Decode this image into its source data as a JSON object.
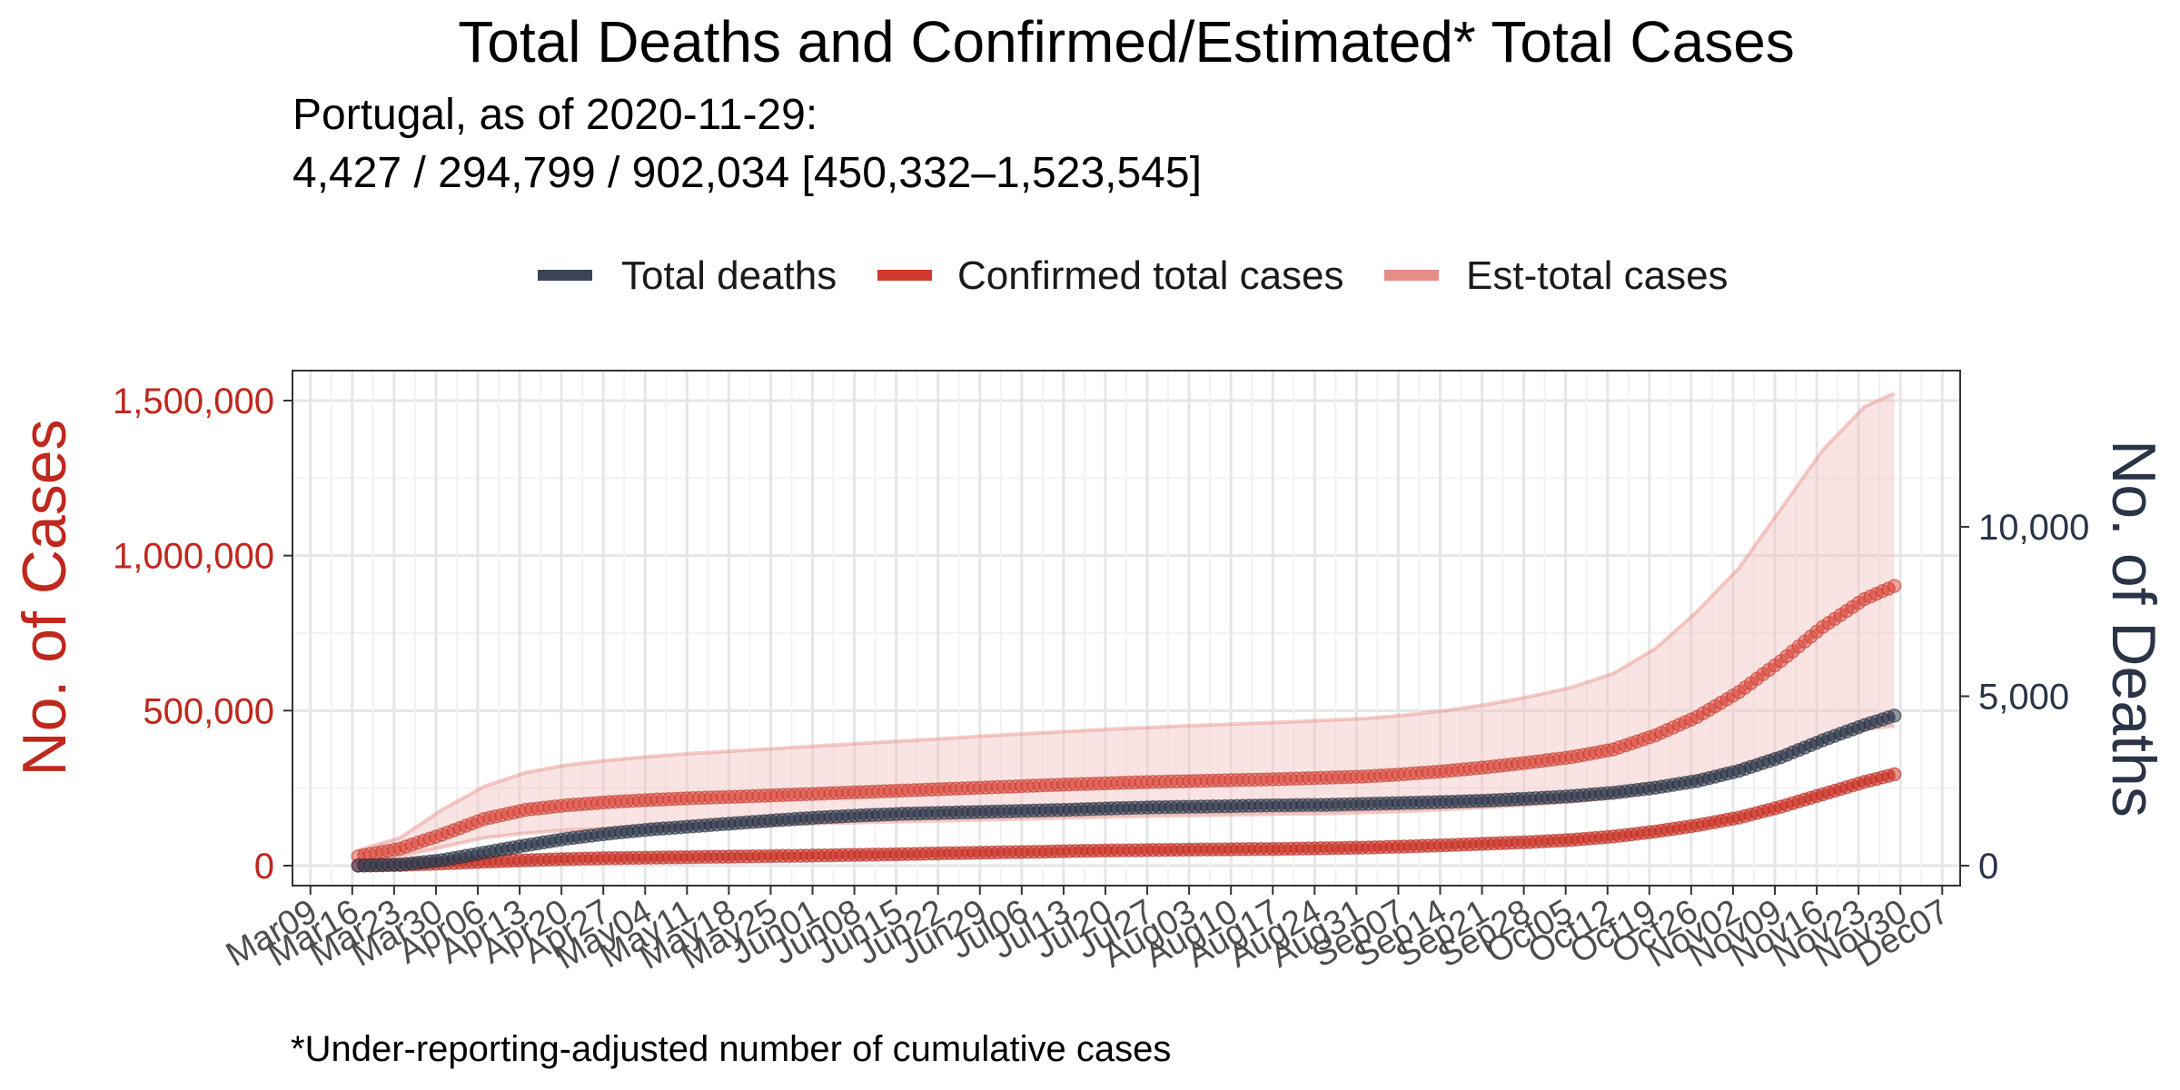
{
  "chart_data": {
    "type": "line",
    "title": "Total Deaths and Confirmed/Estimated* Total Cases",
    "subtitle_line1": "Portugal, as of 2020-11-29:",
    "subtitle_line2": "4,427 / 294,799 / 902,034 [450,332–1,523,545]",
    "caption": "*Under-reporting-adjusted number of cumulative cases",
    "ylabel_left": "No. of Cases",
    "ylabel_right": "No. of Deaths",
    "ylim_left": [
      0,
      1500000
    ],
    "ylim_right": [
      0,
      14000
    ],
    "xlim": [
      "2020-03-06",
      "2020-12-10"
    ],
    "grid": true,
    "legend_position": "top",
    "colors": {
      "deaths": "#3b4457",
      "confirmed": "#d03a2e",
      "estimated": "#e68d86",
      "band": "#f2c4c1",
      "left_axis": "#c0271d",
      "right_axis": "#2b3447"
    },
    "legend": [
      {
        "label": "Total deaths",
        "series": "deaths"
      },
      {
        "label": "Confirmed total cases",
        "series": "confirmed"
      },
      {
        "label": "Est-total cases",
        "series": "estimated"
      }
    ],
    "left_ticks": [
      {
        "value": 0,
        "label": "0"
      },
      {
        "value": 500000,
        "label": "500,000"
      },
      {
        "value": 1000000,
        "label": "1,000,000"
      },
      {
        "value": 1500000,
        "label": "1,500,000"
      }
    ],
    "right_ticks": [
      {
        "value": 0,
        "label": "0"
      },
      {
        "value": 5000,
        "label": "5,000"
      },
      {
        "value": 10000,
        "label": "10,000"
      }
    ],
    "x_ticks": [
      {
        "date": "2020-03-09",
        "label": "Mar09"
      },
      {
        "date": "2020-03-16",
        "label": "Mar16"
      },
      {
        "date": "2020-03-23",
        "label": "Mar23"
      },
      {
        "date": "2020-03-30",
        "label": "Mar30"
      },
      {
        "date": "2020-04-06",
        "label": "Apr06"
      },
      {
        "date": "2020-04-13",
        "label": "Apr13"
      },
      {
        "date": "2020-04-20",
        "label": "Apr20"
      },
      {
        "date": "2020-04-27",
        "label": "Apr27"
      },
      {
        "date": "2020-05-04",
        "label": "May04"
      },
      {
        "date": "2020-05-11",
        "label": "May11"
      },
      {
        "date": "2020-05-18",
        "label": "May18"
      },
      {
        "date": "2020-05-25",
        "label": "May25"
      },
      {
        "date": "2020-06-01",
        "label": "Jun01"
      },
      {
        "date": "2020-06-08",
        "label": "Jun08"
      },
      {
        "date": "2020-06-15",
        "label": "Jun15"
      },
      {
        "date": "2020-06-22",
        "label": "Jun22"
      },
      {
        "date": "2020-06-29",
        "label": "Jun29"
      },
      {
        "date": "2020-07-06",
        "label": "Jul06"
      },
      {
        "date": "2020-07-13",
        "label": "Jul13"
      },
      {
        "date": "2020-07-20",
        "label": "Jul20"
      },
      {
        "date": "2020-07-27",
        "label": "Jul27"
      },
      {
        "date": "2020-08-03",
        "label": "Aug03"
      },
      {
        "date": "2020-08-10",
        "label": "Aug10"
      },
      {
        "date": "2020-08-17",
        "label": "Aug17"
      },
      {
        "date": "2020-08-24",
        "label": "Aug24"
      },
      {
        "date": "2020-08-31",
        "label": "Aug31"
      },
      {
        "date": "2020-09-07",
        "label": "Sep07"
      },
      {
        "date": "2020-09-14",
        "label": "Sep14"
      },
      {
        "date": "2020-09-21",
        "label": "Sep21"
      },
      {
        "date": "2020-09-28",
        "label": "Sep28"
      },
      {
        "date": "2020-10-05",
        "label": "Oct05"
      },
      {
        "date": "2020-10-12",
        "label": "Oct12"
      },
      {
        "date": "2020-10-19",
        "label": "Oct19"
      },
      {
        "date": "2020-10-26",
        "label": "Oct26"
      },
      {
        "date": "2020-11-02",
        "label": "Nov02"
      },
      {
        "date": "2020-11-09",
        "label": "Nov09"
      },
      {
        "date": "2020-11-16",
        "label": "Nov16"
      },
      {
        "date": "2020-11-23",
        "label": "Nov23"
      },
      {
        "date": "2020-11-30",
        "label": "Nov30"
      },
      {
        "date": "2020-12-07",
        "label": "Dec07"
      }
    ],
    "series": [
      {
        "key": "deaths",
        "axis": "right",
        "x": [
          "2020-03-17",
          "2020-03-24",
          "2020-03-31",
          "2020-04-07",
          "2020-04-14",
          "2020-04-21",
          "2020-04-28",
          "2020-05-05",
          "2020-05-12",
          "2020-05-19",
          "2020-05-26",
          "2020-06-02",
          "2020-06-09",
          "2020-06-16",
          "2020-06-23",
          "2020-06-30",
          "2020-07-07",
          "2020-07-14",
          "2020-07-21",
          "2020-07-28",
          "2020-08-04",
          "2020-08-11",
          "2020-08-18",
          "2020-08-25",
          "2020-09-01",
          "2020-09-08",
          "2020-09-15",
          "2020-09-22",
          "2020-09-29",
          "2020-10-06",
          "2020-10-13",
          "2020-10-20",
          "2020-10-27",
          "2020-11-03",
          "2020-11-10",
          "2020-11-17",
          "2020-11-24",
          "2020-11-29"
        ],
        "values": [
          0,
          30,
          160,
          380,
          600,
          800,
          950,
          1070,
          1160,
          1250,
          1340,
          1420,
          1480,
          1530,
          1560,
          1590,
          1620,
          1650,
          1690,
          1720,
          1740,
          1760,
          1780,
          1790,
          1820,
          1850,
          1880,
          1920,
          1980,
          2050,
          2150,
          2300,
          2500,
          2800,
          3200,
          3700,
          4150,
          4427
        ]
      },
      {
        "key": "confirmed",
        "axis": "left",
        "x": [
          "2020-03-17",
          "2020-03-24",
          "2020-03-31",
          "2020-04-07",
          "2020-04-14",
          "2020-04-21",
          "2020-04-28",
          "2020-05-05",
          "2020-05-12",
          "2020-05-19",
          "2020-05-26",
          "2020-06-02",
          "2020-06-09",
          "2020-06-16",
          "2020-06-23",
          "2020-06-30",
          "2020-07-07",
          "2020-07-14",
          "2020-07-21",
          "2020-07-28",
          "2020-08-04",
          "2020-08-11",
          "2020-08-18",
          "2020-08-25",
          "2020-09-01",
          "2020-09-08",
          "2020-09-15",
          "2020-09-22",
          "2020-09-29",
          "2020-10-06",
          "2020-10-13",
          "2020-10-20",
          "2020-10-27",
          "2020-11-03",
          "2020-11-10",
          "2020-11-17",
          "2020-11-24",
          "2020-11-29"
        ],
        "values": [
          450,
          2400,
          7000,
          12500,
          17400,
          21400,
          24300,
          25700,
          27600,
          29200,
          31000,
          32700,
          34900,
          37000,
          39700,
          42100,
          44100,
          46800,
          48800,
          50300,
          51700,
          52900,
          54000,
          55900,
          58000,
          61500,
          66000,
          71000,
          76000,
          83000,
          94000,
          110000,
          130000,
          155000,
          190000,
          230000,
          270000,
          294799
        ]
      },
      {
        "key": "estimated",
        "axis": "left",
        "x": [
          "2020-03-17",
          "2020-03-24",
          "2020-03-31",
          "2020-04-07",
          "2020-04-14",
          "2020-04-21",
          "2020-04-28",
          "2020-05-05",
          "2020-05-12",
          "2020-05-19",
          "2020-05-26",
          "2020-06-02",
          "2020-06-09",
          "2020-06-16",
          "2020-06-23",
          "2020-06-30",
          "2020-07-07",
          "2020-07-14",
          "2020-07-21",
          "2020-07-28",
          "2020-08-04",
          "2020-08-11",
          "2020-08-18",
          "2020-08-25",
          "2020-09-01",
          "2020-09-08",
          "2020-09-15",
          "2020-09-22",
          "2020-09-29",
          "2020-10-06",
          "2020-10-13",
          "2020-10-20",
          "2020-10-27",
          "2020-11-03",
          "2020-11-10",
          "2020-11-17",
          "2020-11-24",
          "2020-11-29"
        ],
        "values": [
          30000,
          55000,
          100000,
          150000,
          180000,
          195000,
          205000,
          212000,
          218000,
          222000,
          227000,
          232000,
          237000,
          242000,
          247000,
          252000,
          257000,
          262000,
          266000,
          270000,
          273000,
          276000,
          279000,
          283000,
          287000,
          295000,
          305000,
          318000,
          333000,
          350000,
          375000,
          420000,
          480000,
          560000,
          660000,
          770000,
          860000,
          902034
        ],
        "lower": [
          15000,
          30000,
          60000,
          90000,
          105000,
          115000,
          120000,
          124000,
          127000,
          130000,
          133000,
          136000,
          139000,
          142000,
          145000,
          148000,
          151000,
          154000,
          157000,
          160000,
          162000,
          164000,
          166000,
          168000,
          171000,
          175000,
          181000,
          188000,
          196000,
          206000,
          220000,
          245000,
          280000,
          320000,
          365000,
          410000,
          440000,
          450332
        ],
        "upper": [
          50000,
          90000,
          180000,
          255000,
          300000,
          325000,
          340000,
          352000,
          362000,
          370000,
          378000,
          386000,
          394000,
          402000,
          410000,
          418000,
          426000,
          433000,
          440000,
          446000,
          452000,
          457000,
          462000,
          468000,
          474000,
          485000,
          500000,
          520000,
          545000,
          575000,
          620000,
          700000,
          820000,
          960000,
          1150000,
          1340000,
          1480000,
          1523545
        ]
      }
    ]
  }
}
